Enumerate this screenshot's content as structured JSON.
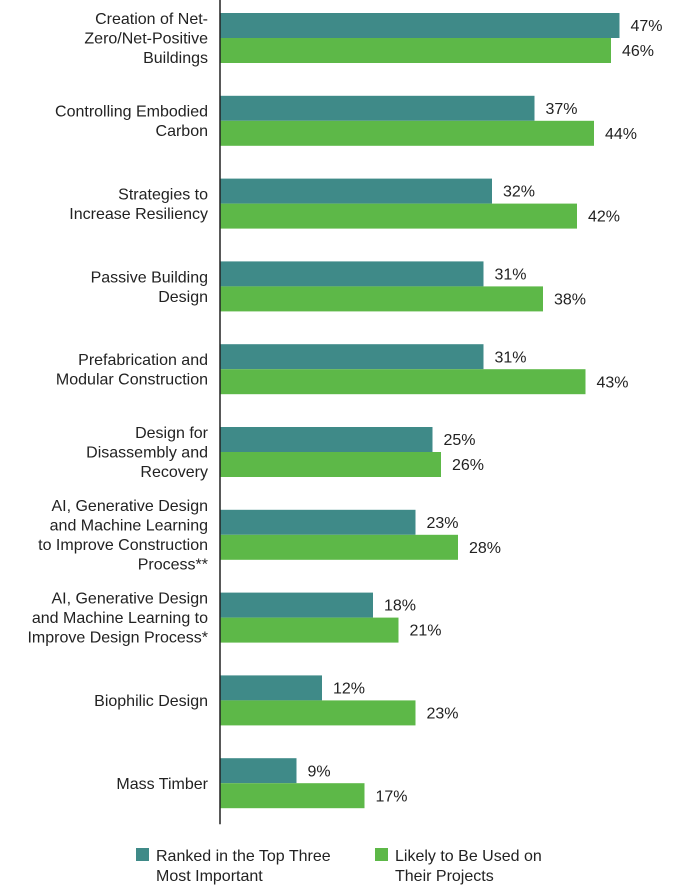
{
  "chart_data": {
    "type": "bar",
    "orientation": "horizontal",
    "categories": [
      [
        "Creation of Net-",
        "Zero/Net-Positive",
        "Buildings"
      ],
      [
        "Controlling Embodied",
        "Carbon"
      ],
      [
        "Strategies to",
        "Increase Resiliency"
      ],
      [
        "Passive Building",
        "Design"
      ],
      [
        "Prefabrication and",
        "Modular Construction"
      ],
      [
        "Design for",
        "Disassembly and",
        "Recovery"
      ],
      [
        "AI, Generative Design",
        "and Machine Learning",
        "to Improve Construction",
        "Process**"
      ],
      [
        "AI, Generative Design",
        "and Machine Learning to",
        "Improve Design Process*"
      ],
      [
        "Biophilic Design"
      ],
      [
        "Mass Timber"
      ]
    ],
    "series": [
      {
        "name": [
          "Ranked in the Top Three",
          "Most Important"
        ],
        "color": "#3f8a88",
        "values": [
          47,
          37,
          32,
          31,
          31,
          25,
          23,
          18,
          12,
          9
        ]
      },
      {
        "name": [
          "Likely to Be Used on",
          "Their Projects"
        ],
        "color": "#5db848",
        "values": [
          46,
          44,
          42,
          38,
          43,
          26,
          28,
          21,
          23,
          17
        ]
      }
    ],
    "value_suffix": "%",
    "xlim": [
      0,
      50
    ],
    "grid": false,
    "legend_position": "bottom"
  }
}
